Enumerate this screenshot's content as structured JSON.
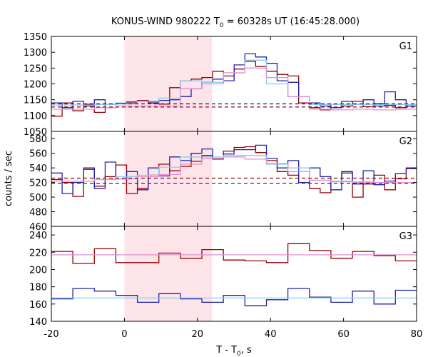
{
  "chart_data": {
    "type": "line",
    "title": "KONUS-WIND 980222 T",
    "title_sub": "0",
    "title_rest": " = 60328s UT (16:45:28.000)",
    "xlabel": "T - T",
    "xlabel_sub": "0",
    "xlabel_rest": ", s",
    "ylabel": "counts / sec",
    "xlim": [
      -20,
      80
    ],
    "xticks": [
      -20,
      0,
      20,
      40,
      60,
      80
    ],
    "shaded_interval": [
      0,
      24
    ],
    "colors": {
      "red": "#990000",
      "blue": "#2222aa",
      "cyan": "#88ccee",
      "pink": "#e090d0",
      "shade": "#fde4e8"
    },
    "panels": [
      {
        "label": "G1",
        "ylim": [
          1050,
          1350
        ],
        "yticks": [
          1050,
          1100,
          1150,
          1200,
          1250,
          1300,
          1350
        ],
        "series": [
          {
            "color": "red",
            "step_width": 2.944,
            "start": -20,
            "values": [
              1098,
              1140,
              1115,
              1136,
              1110,
              1135,
              1137,
              1143,
              1148,
              1139,
              1136,
              1188,
              1210,
              1215,
              1220,
              1240,
              1225,
              1247,
              1271,
              1255,
              1240,
              1230,
              1225,
              1140,
              1125,
              1118,
              1135,
              1130,
              1145,
              1128,
              1138,
              1132,
              1125,
              1130,
              1122,
              1135,
              1120,
              1130,
              1115,
              1120,
              1135,
              1128,
              1130,
              1135,
              1118,
              1123,
              1130,
              1125,
              1118,
              1130,
              1120,
              1135,
              1132,
              1125,
              1118,
              1130,
              1125,
              1135,
              1120,
              1140
            ]
          },
          {
            "color": "blue",
            "step_width": 2.944,
            "start": -20,
            "values": [
              1140,
              1125,
              1145,
              1130,
              1150,
              1135,
              1140,
              1138,
              1145,
              1143,
              1148,
              1150,
              1160,
              1185,
              1205,
              1215,
              1210,
              1260,
              1295,
              1285,
              1265,
              1210,
              1205,
              1160,
              1140,
              1130,
              1125,
              1145,
              1135,
              1150,
              1130,
              1175,
              1150,
              1130,
              1145,
              1135,
              1140,
              1155,
              1130,
              1145,
              1125,
              1150,
              1130,
              1140,
              1125,
              1145,
              1130,
              1150,
              1135,
              1140,
              1125,
              1145,
              1130,
              1150,
              1135,
              1140,
              1125,
              1145,
              1130,
              1135
            ]
          },
          {
            "color": "cyan",
            "step_width": 5.888,
            "start": -20,
            "values": [
              1133,
              1133,
              1135,
              1140,
              1145,
              1155,
              1210,
              1205,
              1235,
              1275,
              1200,
              1160,
              1135,
              1135,
              1135,
              1135,
              1135
            ]
          },
          {
            "color": "pink",
            "step_width": 5.888,
            "start": -20,
            "values": [
              1120,
              1120,
              1125,
              1130,
              1130,
              1130,
              1185,
              1200,
              1235,
              1250,
              1220,
              1160,
              1120,
              1118,
              1120,
              1118,
              1120
            ]
          },
          {
            "color": "red",
            "dashed": true,
            "values": [
              1127
            ]
          },
          {
            "color": "blue",
            "dashed": true,
            "values": [
              1137
            ]
          }
        ]
      },
      {
        "label": "G2",
        "ylim": [
          460,
          590
        ],
        "yticks": [
          460,
          480,
          500,
          520,
          540,
          560,
          580
        ],
        "series": [
          {
            "color": "red",
            "step_width": 2.944,
            "start": -20,
            "values": [
              524,
              520,
              501,
              538,
              515,
              528,
              544,
              505,
              512,
              530,
              545,
              536,
              542,
              549,
              557,
              552,
              563,
              568,
              569,
              561,
              550,
              535,
              530,
              520,
              512,
              506,
              522,
              535,
              500,
              518,
              530,
              510,
              525,
              540,
              495,
              517,
              543,
              507,
              530,
              512,
              527,
              505,
              534,
              520,
              490,
              515,
              532,
              505,
              525,
              521,
              495,
              535,
              517,
              545,
              521,
              500,
              520,
              515,
              540,
              530
            ]
          },
          {
            "color": "blue",
            "step_width": 2.944,
            "start": -20,
            "values": [
              533,
              505,
              520,
              540,
              512,
              548,
              525,
              535,
              510,
              540,
              529,
              555,
              550,
              560,
              566,
              553,
              559,
              565,
              565,
              571,
              553,
              540,
              550,
              520,
              540,
              528,
              510,
              533,
              518,
              536,
              517,
              522,
              532,
              539,
              520,
              542,
              505,
              522,
              530,
              516,
              541,
              522,
              509,
              525,
              500,
              530,
              516,
              534,
              525,
              510,
              524,
              530,
              500,
              520,
              515,
              530,
              545,
              520,
              540,
              566
            ]
          },
          {
            "color": "cyan",
            "step_width": 5.888,
            "start": -20,
            "values": [
              522,
              522,
              524,
              528,
              530,
              541,
              555,
              555,
              557,
              557,
              545,
              540,
              523,
              522,
              521,
              520,
              520
            ]
          },
          {
            "color": "pink",
            "step_width": 5.888,
            "start": -20,
            "values": [
              522,
              522,
              524,
              525,
              528,
              531,
              545,
              553,
              555,
              552,
              546,
              535,
              523,
              521,
              520,
              520,
              520
            ]
          },
          {
            "color": "red",
            "dashed": true,
            "values": [
              526
            ]
          },
          {
            "color": "blue",
            "dashed": true,
            "values": [
              519
            ]
          }
        ]
      },
      {
        "label": "G3",
        "ylim": [
          140,
          250
        ],
        "yticks": [
          140,
          160,
          180,
          200,
          220,
          240
        ],
        "series": [
          {
            "color": "red",
            "step_width": 5.888,
            "start": -20,
            "values": [
              221,
              207,
              224,
              208,
              208,
              219,
              213,
              223,
              211,
              210,
              208,
              230,
              222,
              213,
              221,
              216,
              210
            ]
          },
          {
            "color": "blue",
            "step_width": 5.888,
            "start": -20,
            "values": [
              166,
              178,
              175,
              170,
              162,
              172,
              166,
              162,
              170,
              158,
              165,
              178,
              168,
              162,
              175,
              160,
              176
            ]
          },
          {
            "color": "pink",
            "dashed": false,
            "values": [
              217
            ]
          },
          {
            "color": "cyan",
            "dashed": false,
            "values": [
              167
            ]
          }
        ]
      }
    ]
  }
}
